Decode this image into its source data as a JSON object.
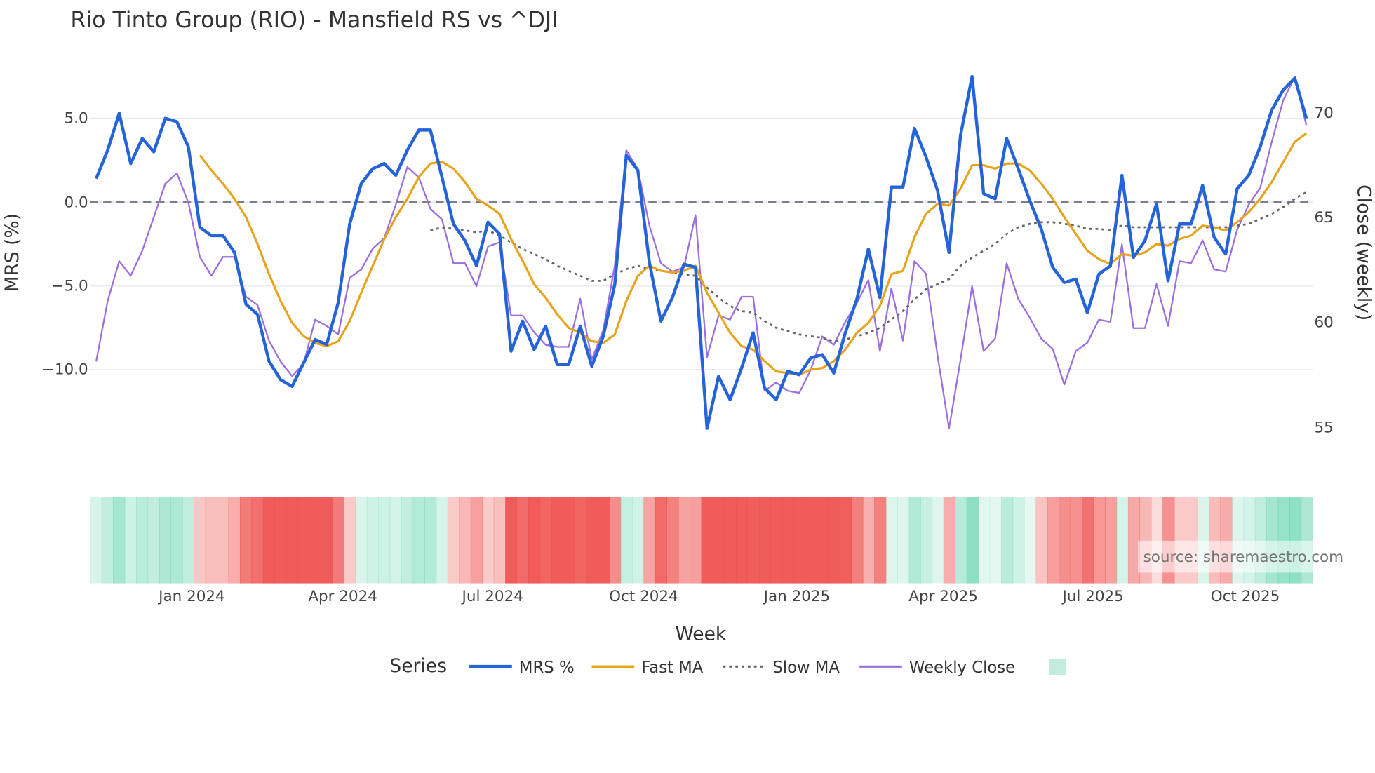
{
  "chart_data": {
    "type": "line",
    "title": "Rio Tinto Group (RIO) - Mansfield RS vs ^DJI",
    "xlabel": "Week",
    "ylabel": "MRS (%)",
    "y2label": "Close (weekly)",
    "ylim": [
      -14.5,
      8.5
    ],
    "y2lim": [
      53,
      72
    ],
    "y_ticks": [
      "5.0",
      "0.0",
      "−5.0",
      "−10.0"
    ],
    "y_tick_values": [
      5,
      0,
      -5,
      -10
    ],
    "y2_ticks": [
      "70",
      "65",
      "60",
      "55"
    ],
    "y2_tick_values": [
      70,
      65,
      60,
      55
    ],
    "x_ticks": [
      {
        "label": "Jan 2024",
        "week_index": 8.3
      },
      {
        "label": "Apr 2024",
        "week_index": 21.4
      },
      {
        "label": "Jul 2024",
        "week_index": 34.4
      },
      {
        "label": "Oct 2024",
        "week_index": 47.5
      },
      {
        "label": "Jan 2025",
        "week_index": 60.8
      },
      {
        "label": "Apr 2025",
        "week_index": 73.5
      },
      {
        "label": "Jul 2025",
        "week_index": 86.5
      },
      {
        "label": "Oct 2025",
        "week_index": 99.7
      }
    ],
    "zero_line": "dashed",
    "legend": {
      "title": "Series",
      "placement": "bottom-center"
    },
    "series": [
      {
        "name": "MRS %",
        "axis": "left",
        "color": "#2563d9",
        "style": "solid",
        "values": [
          1.4,
          3.1,
          5.3,
          2.3,
          3.8,
          3.0,
          5.0,
          4.8,
          3.3,
          -1.5,
          -2.0,
          -2.0,
          -3.0,
          -6.1,
          -6.7,
          -9.5,
          -10.6,
          -11.0,
          -9.6,
          -8.2,
          -8.5,
          -6.0,
          -1.3,
          1.1,
          2.0,
          2.3,
          1.6,
          3.1,
          4.3,
          4.3,
          1.5,
          -1.3,
          -2.3,
          -3.8,
          -1.2,
          -1.9,
          -8.9,
          -7.1,
          -8.8,
          -7.4,
          -9.7,
          -9.7,
          -7.4,
          -9.8,
          -8.0,
          -4.9,
          2.8,
          1.9,
          -3.6,
          -7.1,
          -5.7,
          -3.7,
          -3.9,
          -13.5,
          -10.4,
          -11.8,
          -9.9,
          -7.8,
          -11.1,
          -11.8,
          -10.1,
          -10.3,
          -9.3,
          -9.1,
          -10.2,
          -7.8,
          -5.8,
          -2.8,
          -5.7,
          0.9,
          0.9,
          4.4,
          2.7,
          0.7,
          -3.0,
          4.0,
          7.5,
          0.5,
          0.2,
          3.8,
          2.0,
          0.1,
          -1.6,
          -3.9,
          -4.8,
          -4.6,
          -6.6,
          -4.3,
          -3.8,
          1.6,
          -3.3,
          -2.3,
          -0.1,
          -4.7,
          -1.3,
          -1.3,
          1.0,
          -2.1,
          -3.1,
          0.8,
          1.6,
          3.3,
          5.5,
          6.7,
          7.4,
          5.0
        ]
      },
      {
        "name": "Fast MA",
        "axis": "left",
        "color": "#e8a31c",
        "style": "solid",
        "values": [
          null,
          null,
          null,
          null,
          null,
          null,
          null,
          null,
          null,
          2.8,
          1.9,
          1.1,
          0.2,
          -0.9,
          -2.5,
          -4.3,
          -5.9,
          -7.2,
          -8.0,
          -8.4,
          -8.6,
          -8.3,
          -7.1,
          -5.4,
          -3.8,
          -2.2,
          -0.9,
          0.2,
          1.5,
          2.3,
          2.4,
          2.0,
          1.2,
          0.2,
          -0.2,
          -0.7,
          -2.2,
          -3.5,
          -4.9,
          -5.7,
          -6.7,
          -7.5,
          -7.8,
          -8.3,
          -8.4,
          -7.9,
          -5.9,
          -4.4,
          -3.8,
          -4.1,
          -4.2,
          -4.1,
          -3.8,
          -5.4,
          -6.6,
          -7.8,
          -8.6,
          -8.8,
          -9.5,
          -10.1,
          -10.2,
          -10.3,
          -10.0,
          -9.9,
          -9.5,
          -8.8,
          -7.8,
          -7.2,
          -6.2,
          -4.3,
          -4.1,
          -2.1,
          -0.7,
          -0.1,
          -0.2,
          0.8,
          2.2,
          2.2,
          2.0,
          2.3,
          2.3,
          1.9,
          1.1,
          0.2,
          -0.9,
          -1.9,
          -2.9,
          -3.4,
          -3.7,
          -3.1,
          -3.2,
          -3.0,
          -2.5,
          -2.6,
          -2.2,
          -2.0,
          -1.4,
          -1.5,
          -1.7,
          -1.2,
          -0.6,
          0.2,
          1.2,
          2.4,
          3.6,
          4.1
        ]
      },
      {
        "name": "Slow MA",
        "axis": "left",
        "color": "#666666",
        "style": "dotted",
        "values": [
          null,
          null,
          null,
          null,
          null,
          null,
          null,
          null,
          null,
          null,
          null,
          null,
          null,
          null,
          null,
          null,
          null,
          null,
          null,
          null,
          null,
          null,
          null,
          null,
          null,
          null,
          null,
          null,
          null,
          -1.7,
          -1.5,
          -1.6,
          -1.7,
          -1.8,
          -1.7,
          -2.0,
          -2.4,
          -2.8,
          -3.1,
          -3.4,
          -3.8,
          -4.1,
          -4.4,
          -4.7,
          -4.7,
          -4.3,
          -4.0,
          -3.8,
          -4.0,
          -4.1,
          -4.2,
          -4.3,
          -4.4,
          -5.1,
          -5.7,
          -6.2,
          -6.5,
          -6.6,
          -7.1,
          -7.5,
          -7.7,
          -7.9,
          -8.0,
          -8.1,
          -8.3,
          -8.2,
          -8.0,
          -7.8,
          -7.5,
          -7.0,
          -6.5,
          -5.8,
          -5.2,
          -4.9,
          -4.6,
          -3.8,
          -3.3,
          -2.9,
          -2.5,
          -1.9,
          -1.5,
          -1.3,
          -1.2,
          -1.2,
          -1.3,
          -1.4,
          -1.6,
          -1.6,
          -1.7,
          -1.4,
          -1.5,
          -1.5,
          -1.5,
          -1.5,
          -1.5,
          -1.5,
          -1.5,
          -1.5,
          -1.5,
          -1.4,
          -1.3,
          -1.0,
          -0.7,
          -0.3,
          0.2,
          0.6
        ]
      },
      {
        "name": "Weekly Close",
        "axis": "right",
        "color": "#9b6fe0",
        "style": "solid",
        "values": [
          58.1,
          61.0,
          62.9,
          62.2,
          63.4,
          65.0,
          66.6,
          67.1,
          65.7,
          63.1,
          62.2,
          63.1,
          63.1,
          61.2,
          60.8,
          59.1,
          58.1,
          57.4,
          58.0,
          60.1,
          59.8,
          59.4,
          62.1,
          62.5,
          63.5,
          64.0,
          65.6,
          67.4,
          66.9,
          65.4,
          64.9,
          62.8,
          62.8,
          61.7,
          63.6,
          63.8,
          60.3,
          60.3,
          59.5,
          58.9,
          58.8,
          58.8,
          61.1,
          58.2,
          59.6,
          62.7,
          68.2,
          67.3,
          64.6,
          62.8,
          62.4,
          62.6,
          65.1,
          58.3,
          60.3,
          60.1,
          61.2,
          61.2,
          56.7,
          57.1,
          56.7,
          56.6,
          57.7,
          59.3,
          58.9,
          60.0,
          60.9,
          62.0,
          58.6,
          61.6,
          59.1,
          62.9,
          62.3,
          58.4,
          54.9,
          58.2,
          61.7,
          58.6,
          59.2,
          62.8,
          61.1,
          60.2,
          59.2,
          58.7,
          57.0,
          58.6,
          59.0,
          60.1,
          60.0,
          63.7,
          59.7,
          59.7,
          61.8,
          59.8,
          62.9,
          62.8,
          63.9,
          62.5,
          62.4,
          64.4,
          65.6,
          66.4,
          68.6,
          70.6,
          71.7,
          69.4
        ]
      }
    ],
    "heat_band": {
      "based_on": "MRS %",
      "positive_color": "#5fd3ad",
      "negative_color": "#ef5350"
    },
    "annotation": "source: sharemaestro.com"
  }
}
